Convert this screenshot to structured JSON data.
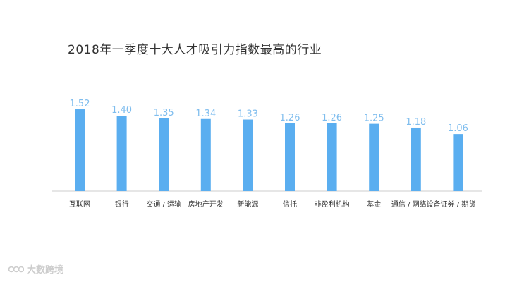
{
  "chart_data": {
    "type": "bar",
    "title": "2018年一季度十大人才吸引力指数最高的行业",
    "categories": [
      "互联网",
      "银行",
      "交通 / 运输",
      "房地产开发",
      "新能源",
      "信托",
      "非盈利机构",
      "基金",
      "通信 / 网络设备",
      "证券 / 期货"
    ],
    "values": [
      1.52,
      1.4,
      1.35,
      1.34,
      1.33,
      1.26,
      1.26,
      1.25,
      1.18,
      1.06
    ],
    "value_labels": [
      "1.52",
      "1.40",
      "1.35",
      "1.34",
      "1.33",
      "1.26",
      "1.26",
      "1.25",
      "1.18",
      "1.06"
    ],
    "ylim": [
      0,
      1.6
    ],
    "xlabel": "",
    "ylabel": "",
    "grid": false,
    "bar_color": "#5aaef0",
    "label_color": "#7fbdee",
    "axis_color": "#cccccc"
  },
  "watermark": {
    "text": "大数跨境",
    "icon": "kr-logo-icon"
  }
}
